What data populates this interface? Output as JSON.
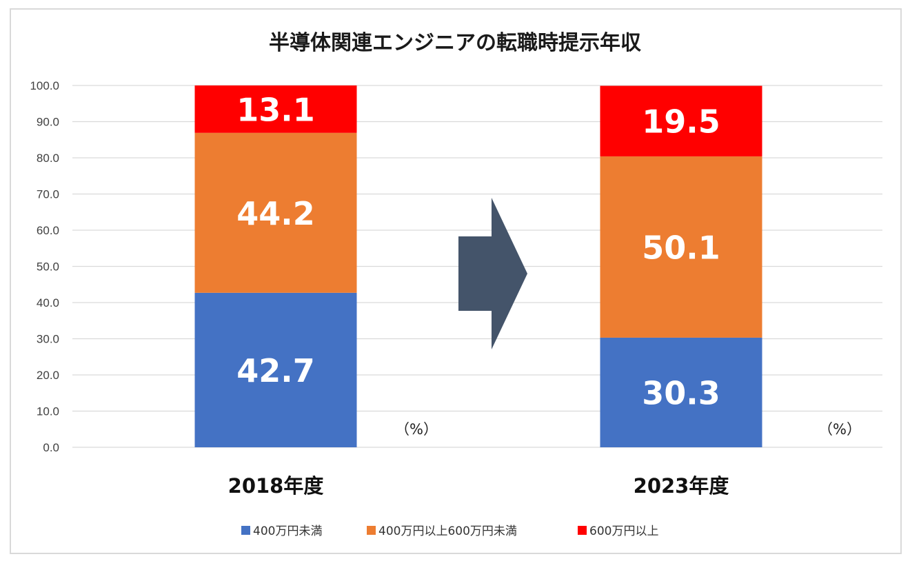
{
  "chart_data": {
    "type": "bar",
    "stacked": true,
    "title": "半導体関連エンジニアの転職時提示年収",
    "categories": [
      "2018年度",
      "2023年度"
    ],
    "series": [
      {
        "name": "400万円未満",
        "color": "#4472c4",
        "values": [
          42.7,
          30.3
        ]
      },
      {
        "name": "400万円以上600万円未満",
        "color": "#ed7d31",
        "values": [
          44.2,
          50.1
        ]
      },
      {
        "name": "600万円以上",
        "color": "#ff0000",
        "values": [
          13.1,
          19.5
        ]
      }
    ],
    "value_labels": [
      [
        "42.7",
        "44.2",
        "13.1"
      ],
      [
        "30.3",
        "50.1",
        "19.5"
      ]
    ],
    "unit_label": "（%）",
    "ylim": [
      0,
      100
    ],
    "yticks": [
      "0.0",
      "10.0",
      "20.0",
      "30.0",
      "40.0",
      "50.0",
      "60.0",
      "70.0",
      "80.0",
      "90.0",
      "100.0"
    ],
    "grid": true,
    "legend_position": "bottom",
    "arrow_color": "#44546a",
    "gridline_color": "#d9d9d9"
  }
}
